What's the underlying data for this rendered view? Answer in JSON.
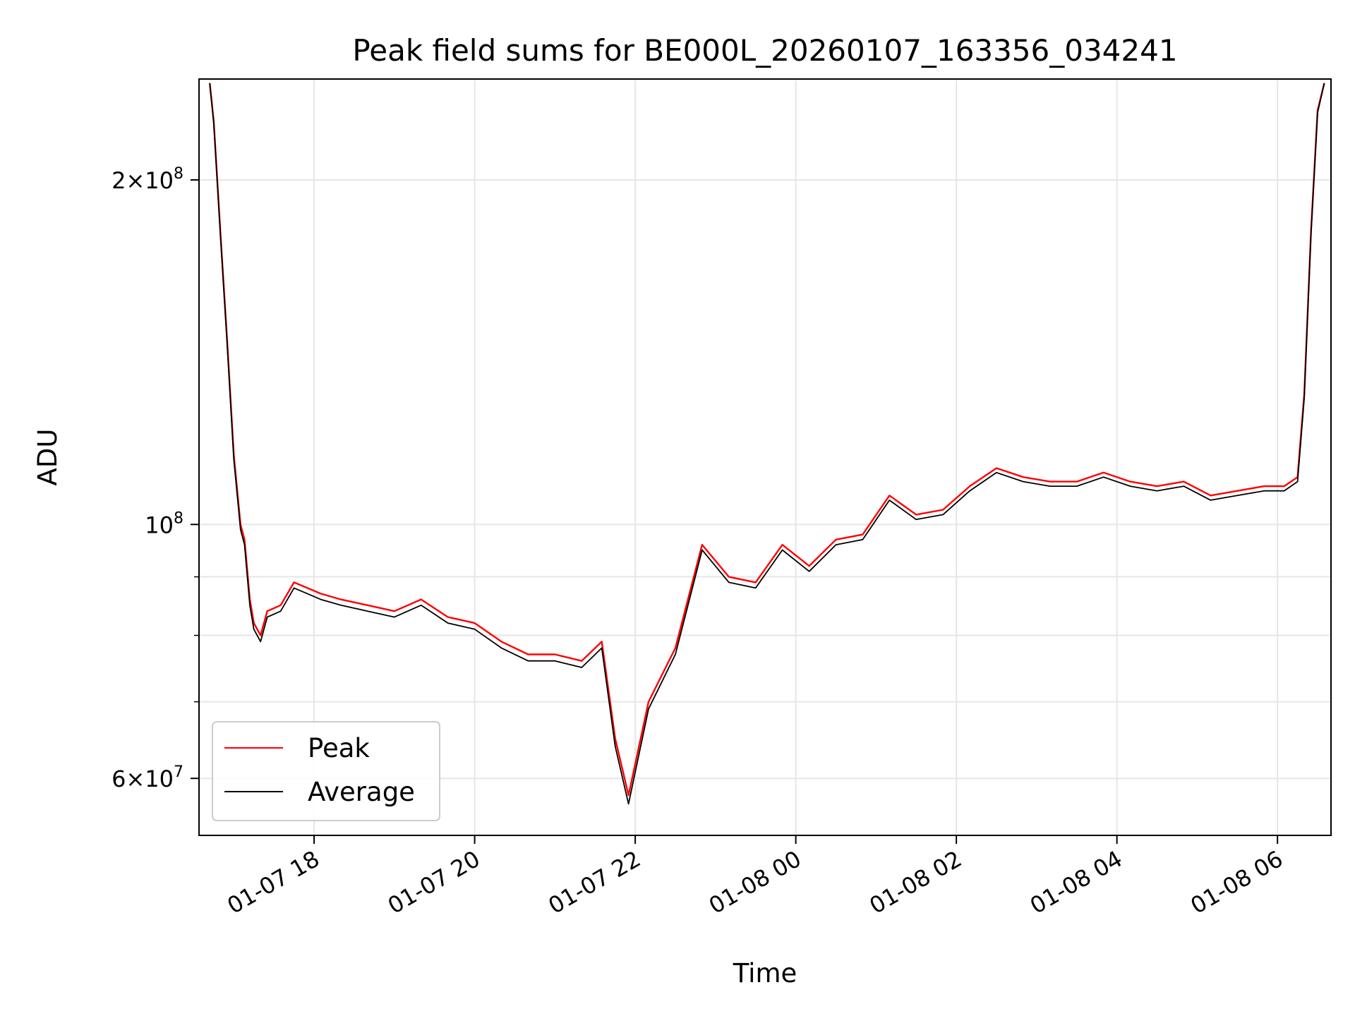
{
  "chart_data": {
    "type": "line",
    "title": "Peak field sums for BE000L_20260107_163356_034241",
    "xlabel": "Time",
    "ylabel": "ADU",
    "x_type": "datetime",
    "xlim": [
      "2026-01-07T16:34",
      "2026-01-08T06:40"
    ],
    "ylim": [
      53500000,
      245000000
    ],
    "yscale": "log",
    "grid": true,
    "legend_position": "lower-left",
    "x_ticks": [
      {
        "value": "2026-01-07T18:00",
        "label": "01-07 18"
      },
      {
        "value": "2026-01-07T20:00",
        "label": "01-07 20"
      },
      {
        "value": "2026-01-07T22:00",
        "label": "01-07 22"
      },
      {
        "value": "2026-01-08T00:00",
        "label": "01-08 00"
      },
      {
        "value": "2026-01-08T02:00",
        "label": "01-08 02"
      },
      {
        "value": "2026-01-08T04:00",
        "label": "01-08 04"
      },
      {
        "value": "2026-01-08T06:00",
        "label": "01-08 06"
      }
    ],
    "y_major_ticks": [
      {
        "value": 60000000,
        "mantissa": "6",
        "exponent": "7"
      },
      {
        "value": 100000000,
        "mantissa": "",
        "exponent": "8"
      },
      {
        "value": 200000000,
        "mantissa": "2",
        "exponent": "8"
      }
    ],
    "y_minor_ticks": [
      70000000,
      80000000,
      90000000
    ],
    "series": [
      {
        "name": "Peak",
        "color": "#ff0000",
        "x": [
          "2026-01-07T16:42",
          "2026-01-07T16:45",
          "2026-01-07T16:50",
          "2026-01-07T16:55",
          "2026-01-07T17:00",
          "2026-01-07T17:05",
          "2026-01-07T17:08",
          "2026-01-07T17:12",
          "2026-01-07T17:15",
          "2026-01-07T17:20",
          "2026-01-07T17:25",
          "2026-01-07T17:35",
          "2026-01-07T17:45",
          "2026-01-07T17:55",
          "2026-01-07T18:05",
          "2026-01-07T18:20",
          "2026-01-07T18:40",
          "2026-01-07T19:00",
          "2026-01-07T19:20",
          "2026-01-07T19:40",
          "2026-01-07T20:00",
          "2026-01-07T20:20",
          "2026-01-07T20:40",
          "2026-01-07T21:00",
          "2026-01-07T21:20",
          "2026-01-07T21:35",
          "2026-01-07T21:45",
          "2026-01-07T21:55",
          "2026-01-07T22:10",
          "2026-01-07T22:30",
          "2026-01-07T22:50",
          "2026-01-07T23:10",
          "2026-01-07T23:30",
          "2026-01-07T23:50",
          "2026-01-08T00:10",
          "2026-01-08T00:30",
          "2026-01-08T00:50",
          "2026-01-08T01:10",
          "2026-01-08T01:30",
          "2026-01-08T01:50",
          "2026-01-08T02:10",
          "2026-01-08T02:30",
          "2026-01-08T02:50",
          "2026-01-08T03:10",
          "2026-01-08T03:30",
          "2026-01-08T03:50",
          "2026-01-08T04:10",
          "2026-01-08T04:30",
          "2026-01-08T04:50",
          "2026-01-08T05:10",
          "2026-01-08T05:30",
          "2026-01-08T05:50",
          "2026-01-08T06:05",
          "2026-01-08T06:15",
          "2026-01-08T06:20",
          "2026-01-08T06:25",
          "2026-01-08T06:30",
          "2026-01-08T06:35"
        ],
        "values": [
          243000000,
          225000000,
          180000000,
          145000000,
          115000000,
          100000000,
          97000000,
          86000000,
          82000000,
          80000000,
          84000000,
          85000000,
          89000000,
          88000000,
          87000000,
          86000000,
          85000000,
          84000000,
          86000000,
          83000000,
          82000000,
          79000000,
          77000000,
          77000000,
          76000000,
          79000000,
          65000000,
          58000000,
          70000000,
          78000000,
          96000000,
          90000000,
          89000000,
          96000000,
          92000000,
          97000000,
          98000000,
          106000000,
          102000000,
          103000000,
          108000000,
          112000000,
          110000000,
          109000000,
          109000000,
          111000000,
          109000000,
          108000000,
          109000000,
          106000000,
          107000000,
          108000000,
          108000000,
          110000000,
          130000000,
          180000000,
          230000000,
          243000000
        ]
      },
      {
        "name": "Average",
        "color": "#000000",
        "x": [
          "2026-01-07T16:42",
          "2026-01-07T16:45",
          "2026-01-07T16:50",
          "2026-01-07T16:55",
          "2026-01-07T17:00",
          "2026-01-07T17:05",
          "2026-01-07T17:08",
          "2026-01-07T17:12",
          "2026-01-07T17:15",
          "2026-01-07T17:20",
          "2026-01-07T17:25",
          "2026-01-07T17:35",
          "2026-01-07T17:45",
          "2026-01-07T17:55",
          "2026-01-07T18:05",
          "2026-01-07T18:20",
          "2026-01-07T18:40",
          "2026-01-07T19:00",
          "2026-01-07T19:20",
          "2026-01-07T19:40",
          "2026-01-07T20:00",
          "2026-01-07T20:20",
          "2026-01-07T20:40",
          "2026-01-07T21:00",
          "2026-01-07T21:20",
          "2026-01-07T21:35",
          "2026-01-07T21:45",
          "2026-01-07T21:55",
          "2026-01-07T22:10",
          "2026-01-07T22:30",
          "2026-01-07T22:50",
          "2026-01-07T23:10",
          "2026-01-07T23:30",
          "2026-01-07T23:50",
          "2026-01-08T00:10",
          "2026-01-08T00:30",
          "2026-01-08T00:50",
          "2026-01-08T01:10",
          "2026-01-08T01:30",
          "2026-01-08T01:50",
          "2026-01-08T02:10",
          "2026-01-08T02:30",
          "2026-01-08T02:50",
          "2026-01-08T03:10",
          "2026-01-08T03:30",
          "2026-01-08T03:50",
          "2026-01-08T04:10",
          "2026-01-08T04:30",
          "2026-01-08T04:50",
          "2026-01-08T05:10",
          "2026-01-08T05:30",
          "2026-01-08T05:50",
          "2026-01-08T06:05",
          "2026-01-08T06:15",
          "2026-01-08T06:20",
          "2026-01-08T06:25",
          "2026-01-08T06:30",
          "2026-01-08T06:35"
        ],
        "values": [
          243000000,
          224000000,
          179000000,
          144000000,
          114000000,
          99000000,
          96000000,
          85000000,
          81000000,
          79000000,
          83000000,
          84000000,
          88000000,
          87000000,
          86000000,
          85000000,
          84000000,
          83000000,
          85000000,
          82000000,
          81000000,
          78000000,
          76000000,
          76000000,
          75000000,
          78000000,
          64000000,
          57000000,
          69000000,
          77000000,
          95000000,
          89000000,
          88000000,
          95000000,
          91000000,
          96000000,
          97000000,
          105000000,
          101000000,
          102000000,
          107000000,
          111000000,
          109000000,
          108000000,
          108000000,
          110000000,
          108000000,
          107000000,
          108000000,
          105000000,
          106000000,
          107000000,
          107000000,
          109000000,
          129000000,
          179000000,
          229000000,
          243000000
        ]
      }
    ]
  }
}
